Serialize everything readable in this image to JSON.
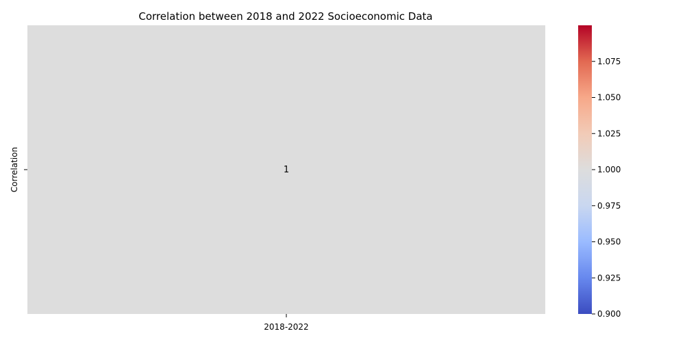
{
  "chart_data": {
    "type": "heatmap",
    "title": "Correlation between 2018 and 2022 Socioeconomic Data",
    "xlabel": "",
    "ylabel": "",
    "x_categories": [
      "2018-2022"
    ],
    "y_categories": [
      "Correlation"
    ],
    "values": [
      [
        1.0
      ]
    ],
    "annotations": [
      [
        "1"
      ]
    ],
    "cell_color": "#dddddd",
    "colormap": "coolwarm",
    "colormap_stops": [
      "#3b4cc0",
      "#6788ee",
      "#9abbff",
      "#c9d7f0",
      "#dddddd",
      "#f2cbb7",
      "#f7a889",
      "#e26952",
      "#b40426"
    ],
    "colorbar": {
      "vmin": 0.9,
      "vmax": 1.1,
      "ticks": [
        "0.900",
        "0.925",
        "0.950",
        "0.975",
        "1.000",
        "1.025",
        "1.050",
        "1.075"
      ]
    },
    "grid": false
  }
}
